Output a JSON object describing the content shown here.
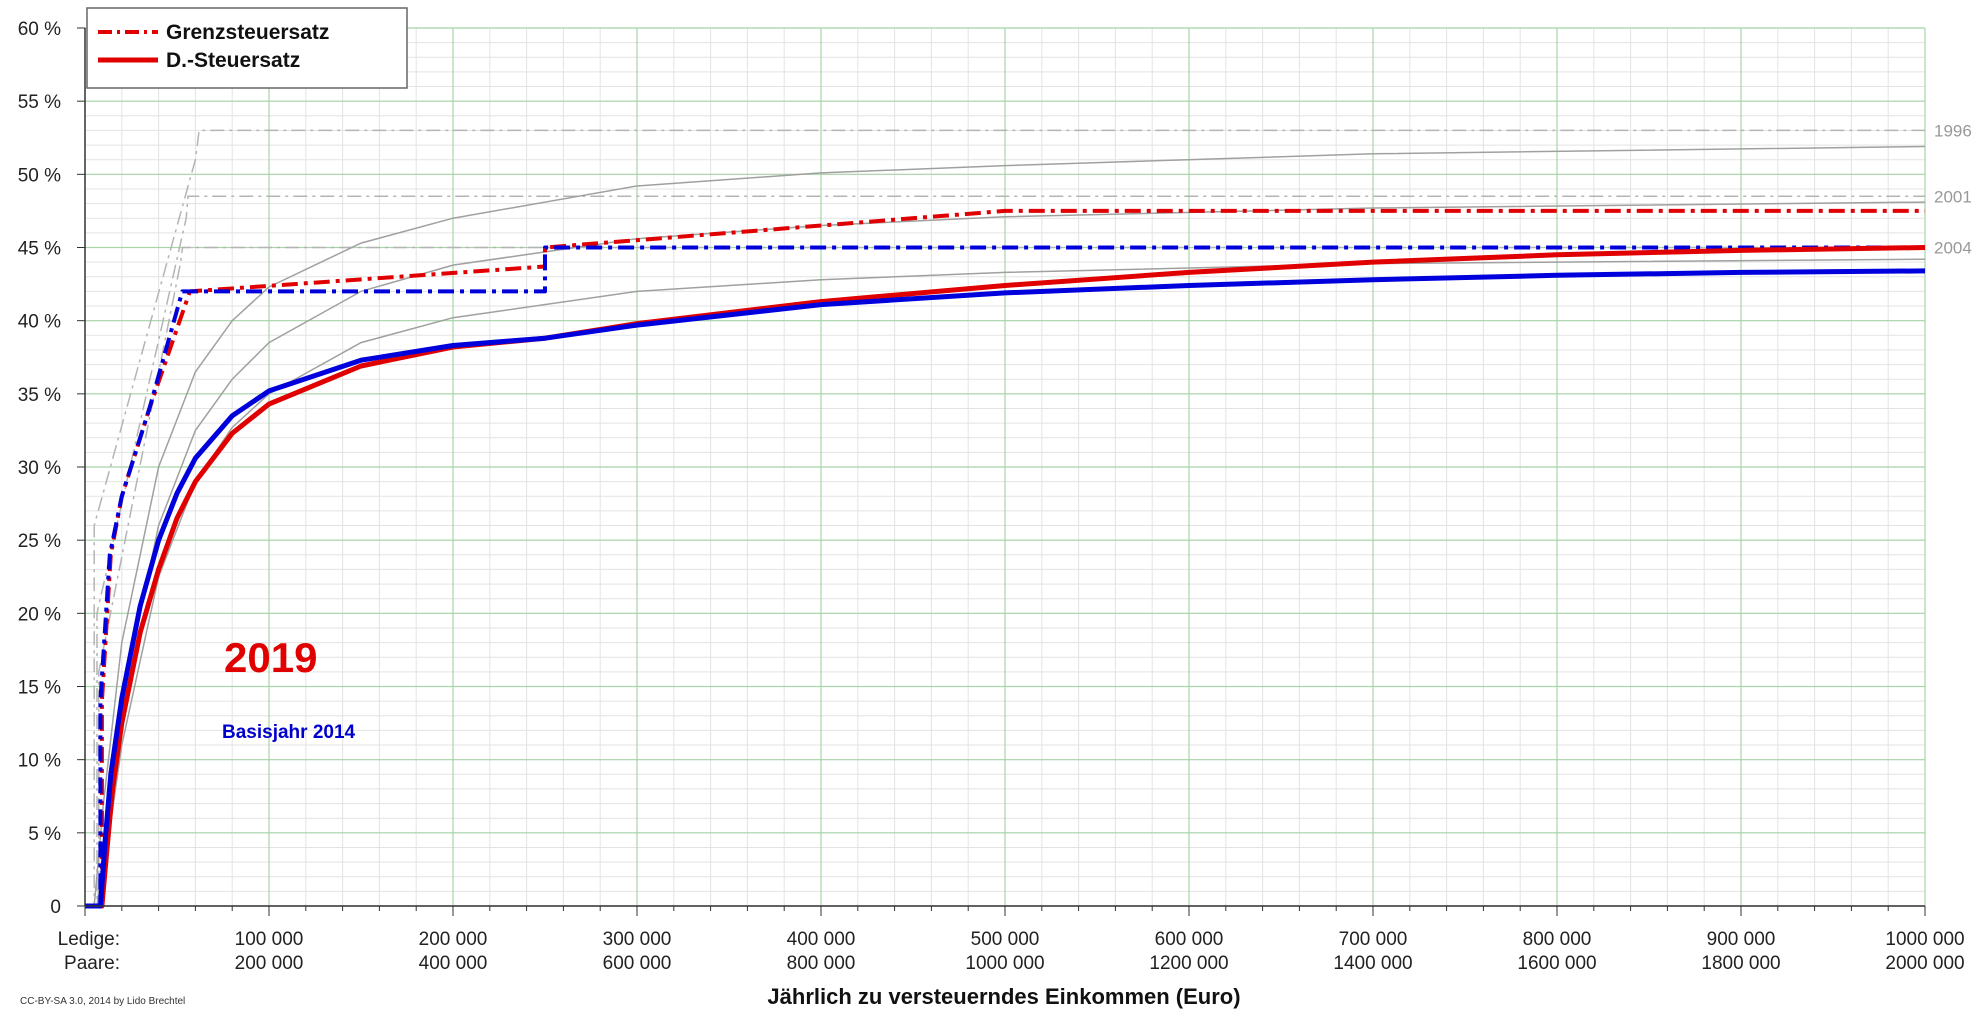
{
  "chart_data": {
    "type": "line",
    "title": "",
    "xlabel": "Jährlich zu versteuerndes Einkommen (Euro)",
    "ylabel": "",
    "xlim": [
      0,
      1000000
    ],
    "ylim": [
      0,
      60
    ],
    "grid": true,
    "legend_position": "top-left",
    "row_labels": {
      "single": "Ledige:",
      "couple": "Paare:"
    },
    "x_ticks": [
      {
        "value": 100000,
        "single": "100 000",
        "couple": "200 000"
      },
      {
        "value": 200000,
        "single": "200 000",
        "couple": "400 000"
      },
      {
        "value": 300000,
        "single": "300 000",
        "couple": "600 000"
      },
      {
        "value": 400000,
        "single": "400 000",
        "couple": "800 000"
      },
      {
        "value": 500000,
        "single": "500 000",
        "couple": "1000 000"
      },
      {
        "value": 600000,
        "single": "600 000",
        "couple": "1200 000"
      },
      {
        "value": 700000,
        "single": "700 000",
        "couple": "1400 000"
      },
      {
        "value": 800000,
        "single": "800 000",
        "couple": "1600 000"
      },
      {
        "value": 900000,
        "single": "900 000",
        "couple": "1800 000"
      },
      {
        "value": 1000000,
        "single": "1000 000",
        "couple": "2000 000"
      }
    ],
    "y_ticks": [
      {
        "value": 0,
        "label": "0"
      },
      {
        "value": 5,
        "label": "5 %"
      },
      {
        "value": 10,
        "label": "10 %"
      },
      {
        "value": 15,
        "label": "15 %"
      },
      {
        "value": 20,
        "label": "20 %"
      },
      {
        "value": 25,
        "label": "25 %"
      },
      {
        "value": 30,
        "label": "30 %"
      },
      {
        "value": 35,
        "label": "35 %"
      },
      {
        "value": 40,
        "label": "40 %"
      },
      {
        "value": 45,
        "label": "45 %"
      },
      {
        "value": 50,
        "label": "50 %"
      },
      {
        "value": 55,
        "label": "55 %"
      },
      {
        "value": 60,
        "label": "60 %"
      }
    ],
    "legend": [
      {
        "label": "Grenzsteuersatz",
        "color": "#e00000",
        "style": "dashdot"
      },
      {
        "label": "D.-Steuersatz",
        "color": "#e00000",
        "style": "solid"
      }
    ],
    "reference_labels": [
      {
        "label": "1996",
        "y": 53
      },
      {
        "label": "2001",
        "y": 48.5
      },
      {
        "label": "2004",
        "y": 45
      }
    ],
    "annotations": {
      "year": "2019",
      "base_year": "Basisjahr 2014",
      "credit": "CC-BY-SA 3.0, 2014 by Lido Brechtel"
    },
    "series": [
      {
        "key": "marginal_2019",
        "color": "#e00000",
        "style": "dashdot",
        "width": 4,
        "x": [
          0,
          9200,
          9200,
          14000,
          14000,
          20000,
          35000,
          57000,
          250000,
          250000,
          500000,
          1000000
        ],
        "y": [
          0,
          0,
          14,
          24,
          24,
          28,
          34,
          42,
          43.7,
          45,
          47.5,
          47.5
        ]
      },
      {
        "key": "marginal_2014",
        "color": "#0000dd",
        "style": "dashdot",
        "width": 4,
        "x": [
          0,
          8354,
          8354,
          13469,
          13469,
          20000,
          35000,
          52881,
          250000,
          250000,
          1000000
        ],
        "y": [
          0,
          0,
          14,
          24,
          24,
          28,
          34,
          42,
          42,
          45,
          45
        ]
      },
      {
        "key": "average_2019",
        "color": "#e00000",
        "style": "solid",
        "width": 5,
        "x": [
          0,
          9200,
          12000,
          15000,
          20000,
          30000,
          40000,
          50000,
          60000,
          80000,
          100000,
          150000,
          200000,
          250000,
          300000,
          400000,
          500000,
          600000,
          700000,
          800000,
          900000,
          1000000
        ],
        "y": [
          0,
          0,
          4,
          8,
          12.5,
          18.7,
          23,
          26.5,
          29,
          32.3,
          34.3,
          36.9,
          38.2,
          38.8,
          39.8,
          41.3,
          42.4,
          43.3,
          44,
          44.5,
          44.8,
          45
        ]
      },
      {
        "key": "average_2014",
        "color": "#0000dd",
        "style": "solid",
        "width": 5,
        "x": [
          0,
          8354,
          11000,
          14000,
          20000,
          30000,
          40000,
          50000,
          60000,
          80000,
          100000,
          150000,
          200000,
          250000,
          300000,
          400000,
          500000,
          600000,
          700000,
          800000,
          900000,
          1000000
        ],
        "y": [
          0,
          0,
          4.5,
          9,
          14.2,
          20.5,
          25,
          28.2,
          30.6,
          33.5,
          35.2,
          37.3,
          38.3,
          38.8,
          39.7,
          41.1,
          41.9,
          42.4,
          42.8,
          43.1,
          43.3,
          43.4
        ]
      }
    ],
    "reference_series": [
      {
        "key": "marginal_1996",
        "x": [
          0,
          5000,
          5000,
          60000,
          62000,
          1000000
        ],
        "y": [
          0,
          0,
          26,
          51,
          53,
          53
        ],
        "style": "dashdot"
      },
      {
        "key": "marginal_2001",
        "x": [
          0,
          6500,
          6500,
          55000,
          56000,
          1000000
        ],
        "y": [
          0,
          0,
          20,
          47,
          48.5,
          48.5
        ],
        "style": "dashdot"
      },
      {
        "key": "marginal_2004",
        "x": [
          0,
          7500,
          7500,
          52000,
          53000,
          1000000
        ],
        "y": [
          0,
          0,
          16,
          44,
          45,
          45
        ],
        "style": "dashdot"
      },
      {
        "key": "average_1996",
        "x": [
          0,
          5000,
          10000,
          20000,
          40000,
          60000,
          80000,
          100000,
          150000,
          200000,
          300000,
          400000,
          500000,
          700000,
          1000000
        ],
        "y": [
          0,
          0,
          7,
          18,
          30,
          36.5,
          40,
          42.3,
          45.3,
          47,
          49.2,
          50.1,
          50.6,
          51.4,
          51.9
        ]
      },
      {
        "key": "average_2001",
        "x": [
          0,
          6500,
          12000,
          20000,
          40000,
          60000,
          80000,
          100000,
          150000,
          200000,
          300000,
          400000,
          500000,
          700000,
          1000000
        ],
        "y": [
          0,
          0,
          6,
          14,
          26,
          32.5,
          36,
          38.5,
          42,
          43.8,
          45.6,
          46.5,
          47.1,
          47.7,
          48.1
        ]
      },
      {
        "key": "average_2004",
        "x": [
          0,
          7500,
          12000,
          20000,
          40000,
          60000,
          80000,
          100000,
          150000,
          200000,
          300000,
          400000,
          500000,
          700000,
          1000000
        ],
        "y": [
          0,
          0,
          4,
          11,
          22.5,
          29,
          32.7,
          35,
          38.5,
          40.2,
          42,
          42.8,
          43.3,
          43.9,
          44.2
        ]
      }
    ]
  }
}
